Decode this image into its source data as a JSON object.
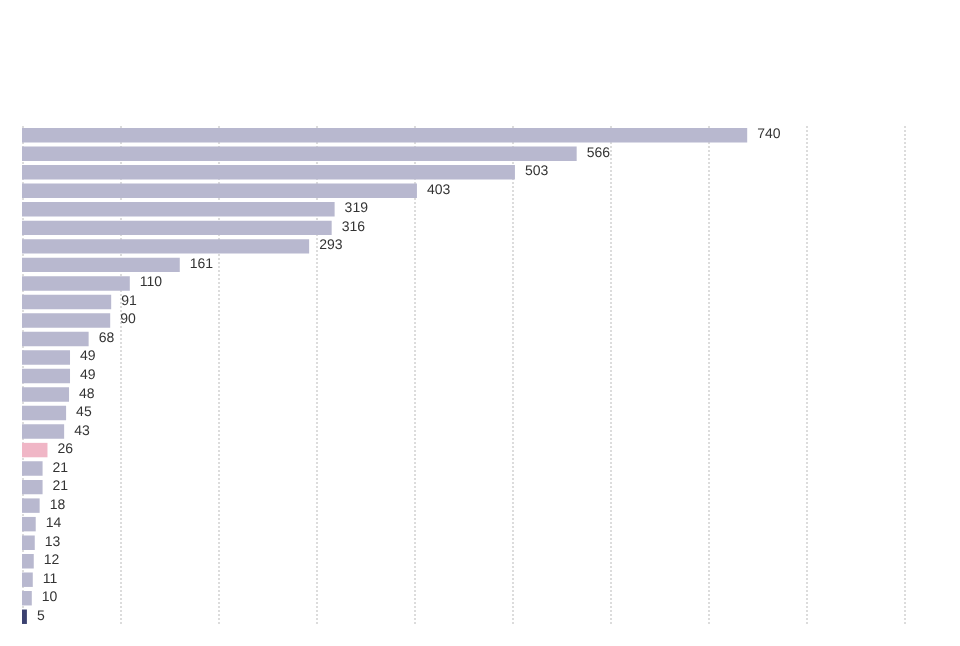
{
  "chart_data": {
    "type": "bar",
    "orientation": "horizontal",
    "categories": [
      null,
      null,
      null,
      null,
      null,
      null,
      null,
      null,
      null,
      null,
      null,
      null,
      null,
      null,
      null,
      null,
      null,
      null,
      null,
      null,
      null,
      null,
      null,
      null,
      null,
      null,
      null
    ],
    "values": [
      740,
      566,
      503,
      403,
      319,
      316,
      293,
      161,
      110,
      91,
      90,
      68,
      49,
      49,
      48,
      45,
      43,
      26,
      21,
      21,
      18,
      14,
      13,
      12,
      11,
      10,
      5
    ],
    "colors": [
      "#b8b8cf",
      "#b8b8cf",
      "#b8b8cf",
      "#b8b8cf",
      "#b8b8cf",
      "#b8b8cf",
      "#b8b8cf",
      "#b8b8cf",
      "#b8b8cf",
      "#b8b8cf",
      "#b8b8cf",
      "#b8b8cf",
      "#b8b8cf",
      "#b8b8cf",
      "#b8b8cf",
      "#b8b8cf",
      "#b8b8cf",
      "#f0b6c6",
      "#b8b8cf",
      "#b8b8cf",
      "#b8b8cf",
      "#b8b8cf",
      "#b8b8cf",
      "#b8b8cf",
      "#b8b8cf",
      "#b8b8cf",
      "#3b4170"
    ],
    "xlim": [
      0,
      900
    ],
    "xticks": [
      {
        "value": 0,
        "label": null
      },
      {
        "value": 100,
        "label": null
      },
      {
        "value": 200,
        "label": null
      },
      {
        "value": 300,
        "label": null
      },
      {
        "value": 400,
        "label": null
      },
      {
        "value": 500,
        "label": null
      },
      {
        "value": 600,
        "label": null
      },
      {
        "value": 700,
        "label": null
      },
      {
        "value": 800,
        "label": null
      },
      {
        "value": 900,
        "label": null
      }
    ],
    "grid": "x",
    "data_labels": true
  }
}
